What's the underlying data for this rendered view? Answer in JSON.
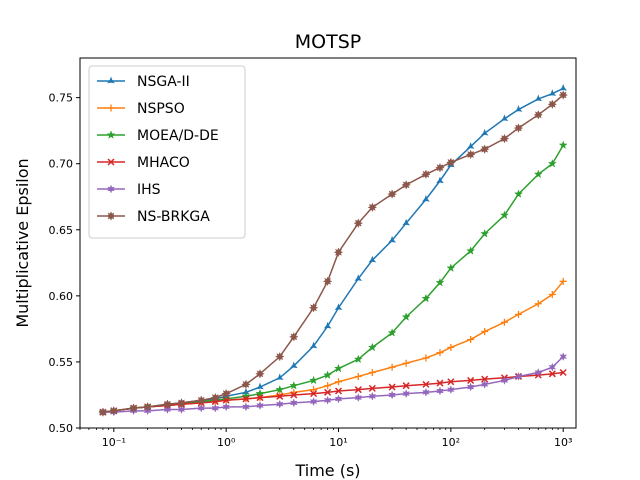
{
  "chart_data": {
    "type": "line",
    "title": "MOTSP",
    "xlabel": "Time (s)",
    "ylabel": "Multiplicative Epsilon",
    "xscale": "log",
    "xlim": [
      0.05,
      1300
    ],
    "ylim": [
      0.5,
      0.78
    ],
    "xticks": [
      {
        "value": 0.1,
        "label": "10⁻¹"
      },
      {
        "value": 1,
        "label": "10⁰"
      },
      {
        "value": 10,
        "label": "10¹"
      },
      {
        "value": 100,
        "label": "10²"
      },
      {
        "value": 1000,
        "label": "10³"
      }
    ],
    "yticks": [
      0.5,
      0.55,
      0.6,
      0.65,
      0.7,
      0.75
    ],
    "grid": false,
    "legend_position": "top-left",
    "series": [
      {
        "name": "NSGA-II",
        "color": "#1f77b4",
        "marker": "tri",
        "x": [
          0.08,
          0.1,
          0.15,
          0.2,
          0.3,
          0.4,
          0.6,
          0.8,
          1,
          1.5,
          2,
          3,
          4,
          6,
          8,
          10,
          15,
          20,
          30,
          40,
          60,
          80,
          100,
          150,
          200,
          300,
          400,
          600,
          800,
          1000
        ],
        "y": [
          0.512,
          0.513,
          0.515,
          0.516,
          0.518,
          0.519,
          0.521,
          0.522,
          0.524,
          0.527,
          0.531,
          0.538,
          0.547,
          0.562,
          0.577,
          0.591,
          0.613,
          0.627,
          0.642,
          0.655,
          0.673,
          0.687,
          0.699,
          0.713,
          0.723,
          0.734,
          0.741,
          0.749,
          0.753,
          0.757
        ]
      },
      {
        "name": "NSPSO",
        "color": "#ff7f0e",
        "marker": "plus",
        "x": [
          0.08,
          0.1,
          0.15,
          0.2,
          0.3,
          0.4,
          0.6,
          0.8,
          1,
          1.5,
          2,
          3,
          4,
          6,
          8,
          10,
          15,
          20,
          30,
          40,
          60,
          80,
          100,
          150,
          200,
          300,
          400,
          600,
          800,
          1000
        ],
        "y": [
          0.512,
          0.513,
          0.515,
          0.516,
          0.517,
          0.518,
          0.519,
          0.52,
          0.521,
          0.522,
          0.523,
          0.525,
          0.527,
          0.529,
          0.532,
          0.535,
          0.539,
          0.542,
          0.546,
          0.549,
          0.553,
          0.557,
          0.561,
          0.567,
          0.573,
          0.58,
          0.586,
          0.594,
          0.601,
          0.611
        ]
      },
      {
        "name": "MOEA/D-DE",
        "color": "#2ca02c",
        "marker": "star",
        "x": [
          0.08,
          0.1,
          0.15,
          0.2,
          0.3,
          0.4,
          0.6,
          0.8,
          1,
          1.5,
          2,
          3,
          4,
          6,
          8,
          10,
          15,
          20,
          30,
          40,
          60,
          80,
          100,
          150,
          200,
          300,
          400,
          600,
          800,
          1000
        ],
        "y": [
          0.512,
          0.513,
          0.515,
          0.516,
          0.517,
          0.518,
          0.52,
          0.521,
          0.522,
          0.524,
          0.526,
          0.529,
          0.532,
          0.536,
          0.54,
          0.545,
          0.552,
          0.561,
          0.572,
          0.584,
          0.598,
          0.61,
          0.621,
          0.634,
          0.647,
          0.661,
          0.677,
          0.692,
          0.7,
          0.714
        ]
      },
      {
        "name": "MHACO",
        "color": "#d62728",
        "marker": "x",
        "x": [
          0.08,
          0.1,
          0.15,
          0.2,
          0.3,
          0.4,
          0.6,
          0.8,
          1,
          1.5,
          2,
          3,
          4,
          6,
          8,
          10,
          15,
          20,
          30,
          40,
          60,
          80,
          100,
          150,
          200,
          300,
          400,
          600,
          800,
          1000
        ],
        "y": [
          0.512,
          0.513,
          0.515,
          0.516,
          0.517,
          0.518,
          0.519,
          0.52,
          0.521,
          0.522,
          0.523,
          0.524,
          0.525,
          0.526,
          0.527,
          0.528,
          0.529,
          0.53,
          0.531,
          0.532,
          0.533,
          0.534,
          0.535,
          0.536,
          0.537,
          0.538,
          0.539,
          0.54,
          0.541,
          0.542
        ]
      },
      {
        "name": "IHS",
        "color": "#9467bd",
        "marker": "star6",
        "x": [
          0.08,
          0.1,
          0.15,
          0.2,
          0.3,
          0.4,
          0.6,
          0.8,
          1,
          1.5,
          2,
          3,
          4,
          6,
          8,
          10,
          15,
          20,
          30,
          40,
          60,
          80,
          100,
          150,
          200,
          300,
          400,
          600,
          800,
          1000
        ],
        "y": [
          0.512,
          0.512,
          0.513,
          0.513,
          0.514,
          0.514,
          0.515,
          0.515,
          0.516,
          0.516,
          0.517,
          0.518,
          0.519,
          0.52,
          0.521,
          0.522,
          0.523,
          0.524,
          0.525,
          0.526,
          0.527,
          0.528,
          0.529,
          0.531,
          0.533,
          0.536,
          0.539,
          0.542,
          0.546,
          0.554
        ]
      },
      {
        "name": "NS-BRKGA",
        "color": "#8c564b",
        "marker": "star8",
        "x": [
          0.08,
          0.1,
          0.15,
          0.2,
          0.3,
          0.4,
          0.6,
          0.8,
          1,
          1.5,
          2,
          3,
          4,
          6,
          8,
          10,
          15,
          20,
          30,
          40,
          60,
          80,
          100,
          150,
          200,
          300,
          400,
          600,
          800,
          1000
        ],
        "y": [
          0.512,
          0.513,
          0.515,
          0.516,
          0.518,
          0.519,
          0.521,
          0.523,
          0.526,
          0.533,
          0.541,
          0.554,
          0.569,
          0.591,
          0.611,
          0.633,
          0.655,
          0.667,
          0.677,
          0.684,
          0.692,
          0.697,
          0.701,
          0.707,
          0.711,
          0.719,
          0.727,
          0.737,
          0.745,
          0.752
        ]
      }
    ]
  }
}
